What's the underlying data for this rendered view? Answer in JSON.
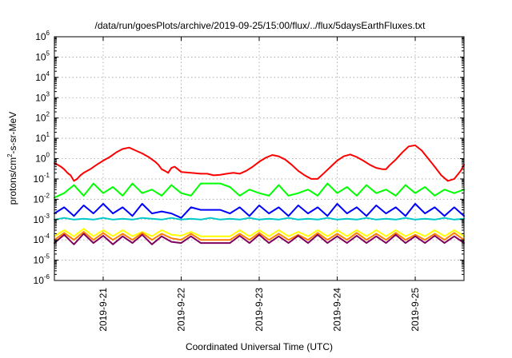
{
  "chart_data": {
    "type": "line",
    "title": "/data/run/goesPlots/archive/2019-09-25/15:00/flux/../flux/5daysEarthFluxes.txt",
    "xlabel": "Coordinated Universal Time (UTC)",
    "ylabel": {
      "base": "protons/cm",
      "sup": "2",
      "rest": "-s-sr-MeV"
    },
    "yscale": "log",
    "ylim": [
      1e-06,
      1000000.0
    ],
    "y_ticks": [
      {
        "base": "10",
        "exp": "6",
        "value": 1000000.0
      },
      {
        "base": "10",
        "exp": "5",
        "value": 100000.0
      },
      {
        "base": "10",
        "exp": "4",
        "value": 10000.0
      },
      {
        "base": "10",
        "exp": "3",
        "value": 1000.0
      },
      {
        "base": "10",
        "exp": "2",
        "value": 100.0
      },
      {
        "base": "10",
        "exp": "1",
        "value": 10.0
      },
      {
        "base": "10",
        "exp": "0",
        "value": 1.0
      },
      {
        "base": "10",
        "exp": "-1",
        "value": 0.1
      },
      {
        "base": "10",
        "exp": "-2",
        "value": 0.01
      },
      {
        "base": "10",
        "exp": "-3",
        "value": 0.001
      },
      {
        "base": "10",
        "exp": "-4",
        "value": 0.0001
      },
      {
        "base": "10",
        "exp": "-5",
        "value": 1e-05
      },
      {
        "base": "10",
        "exp": "-6",
        "value": 1e-06
      }
    ],
    "xlim": [
      "2019-09-20 09:00",
      "2019-09-25 15:00"
    ],
    "x_ticks": [
      {
        "label": "2019-9-21",
        "value": "2019-09-21 00:00"
      },
      {
        "label": "2019-9-22",
        "value": "2019-09-22 00:00"
      },
      {
        "label": "2019-9-23",
        "value": "2019-09-23 00:00"
      },
      {
        "label": "2019-9-24",
        "value": "2019-09-24 00:00"
      },
      {
        "label": "2019-9-25",
        "value": "2019-09-25 00:00"
      }
    ],
    "grid": true,
    "series": [
      {
        "color": "#ff0000",
        "x": [
          "2019-09-20 09:00",
          "2019-09-20 10:00",
          "2019-09-20 11:00",
          "2019-09-20 12:00",
          "2019-09-20 13:00",
          "2019-09-20 14:00",
          "2019-09-20 15:00",
          "2019-09-20 16:00",
          "2019-09-20 17:00",
          "2019-09-20 18:00",
          "2019-09-20 20:00",
          "2019-09-20 22:00",
          "2019-09-21 00:00",
          "2019-09-21 02:00",
          "2019-09-21 04:00",
          "2019-09-21 06:00",
          "2019-09-21 08:00",
          "2019-09-21 10:00",
          "2019-09-21 12:00",
          "2019-09-21 14:00",
          "2019-09-21 16:00",
          "2019-09-21 17:00",
          "2019-09-21 18:00",
          "2019-09-21 19:00",
          "2019-09-21 20:00",
          "2019-09-21 21:00",
          "2019-09-21 22:00",
          "2019-09-21 23:00",
          "2019-09-22 00:00",
          "2019-09-22 03:00",
          "2019-09-22 06:00",
          "2019-09-22 08:00",
          "2019-09-22 10:00",
          "2019-09-22 12:00",
          "2019-09-22 14:00",
          "2019-09-22 16:00",
          "2019-09-22 18:00",
          "2019-09-22 20:00",
          "2019-09-22 22:00",
          "2019-09-23 00:00",
          "2019-09-23 02:00",
          "2019-09-23 04:00",
          "2019-09-23 06:00",
          "2019-09-23 08:00",
          "2019-09-23 10:00",
          "2019-09-23 12:00",
          "2019-09-23 14:00",
          "2019-09-23 16:00",
          "2019-09-23 18:00",
          "2019-09-23 20:00",
          "2019-09-23 22:00",
          "2019-09-24 00:00",
          "2019-09-24 02:00",
          "2019-09-24 04:00",
          "2019-09-24 06:00",
          "2019-09-24 08:00",
          "2019-09-24 10:00",
          "2019-09-24 12:00",
          "2019-09-24 14:00",
          "2019-09-24 15:00",
          "2019-09-24 16:00",
          "2019-09-24 18:00",
          "2019-09-24 20:00",
          "2019-09-24 22:00",
          "2019-09-25 00:00",
          "2019-09-25 02:00",
          "2019-09-25 04:00",
          "2019-09-25 06:00",
          "2019-09-25 08:00",
          "2019-09-25 10:00",
          "2019-09-25 12:00",
          "2019-09-25 14:00",
          "2019-09-25 15:00"
        ],
        "y": [
          0.6,
          0.5,
          0.4,
          0.3,
          0.2,
          0.15,
          0.08,
          0.1,
          0.15,
          0.2,
          0.3,
          0.5,
          0.8,
          1.2,
          2,
          3,
          3.5,
          2.5,
          1.8,
          1.2,
          0.7,
          0.5,
          0.3,
          0.25,
          0.2,
          0.35,
          0.4,
          0.3,
          0.22,
          0.2,
          0.18,
          0.18,
          0.15,
          0.16,
          0.18,
          0.2,
          0.18,
          0.25,
          0.4,
          0.7,
          1.1,
          1.5,
          1.3,
          0.9,
          0.5,
          0.25,
          0.15,
          0.1,
          0.1,
          0.2,
          0.4,
          0.8,
          1.3,
          1.6,
          1.2,
          0.8,
          0.5,
          0.35,
          0.3,
          0.3,
          0.45,
          0.9,
          2,
          4,
          4.5,
          2.5,
          1,
          0.4,
          0.15,
          0.08,
          0.1,
          0.25,
          0.5
        ]
      },
      {
        "color": "#00ff00",
        "x": [
          "2019-09-20 09:00",
          "2019-09-20 12:00",
          "2019-09-20 15:00",
          "2019-09-20 18:00",
          "2019-09-20 21:00",
          "2019-09-21 00:00",
          "2019-09-21 03:00",
          "2019-09-21 06:00",
          "2019-09-21 09:00",
          "2019-09-21 12:00",
          "2019-09-21 15:00",
          "2019-09-21 18:00",
          "2019-09-21 21:00",
          "2019-09-22 00:00",
          "2019-09-22 03:00",
          "2019-09-22 06:00",
          "2019-09-22 09:00",
          "2019-09-22 12:00",
          "2019-09-22 15:00",
          "2019-09-22 18:00",
          "2019-09-22 21:00",
          "2019-09-23 00:00",
          "2019-09-23 03:00",
          "2019-09-23 06:00",
          "2019-09-23 09:00",
          "2019-09-23 12:00",
          "2019-09-23 15:00",
          "2019-09-23 18:00",
          "2019-09-23 21:00",
          "2019-09-24 00:00",
          "2019-09-24 03:00",
          "2019-09-24 06:00",
          "2019-09-24 09:00",
          "2019-09-24 12:00",
          "2019-09-24 15:00",
          "2019-09-24 18:00",
          "2019-09-24 21:00",
          "2019-09-25 00:00",
          "2019-09-25 03:00",
          "2019-09-25 06:00",
          "2019-09-25 09:00",
          "2019-09-25 12:00",
          "2019-09-25 15:00"
        ],
        "y": [
          0.012,
          0.02,
          0.05,
          0.015,
          0.06,
          0.02,
          0.04,
          0.015,
          0.06,
          0.02,
          0.03,
          0.015,
          0.05,
          0.02,
          0.015,
          0.06,
          0.06,
          0.06,
          0.04,
          0.015,
          0.03,
          0.02,
          0.015,
          0.05,
          0.015,
          0.02,
          0.03,
          0.015,
          0.06,
          0.02,
          0.04,
          0.015,
          0.05,
          0.02,
          0.03,
          0.015,
          0.05,
          0.02,
          0.04,
          0.015,
          0.03,
          0.02,
          0.03
        ]
      },
      {
        "color": "#0000ff",
        "x": [
          "2019-09-20 09:00",
          "2019-09-20 12:00",
          "2019-09-20 15:00",
          "2019-09-20 18:00",
          "2019-09-20 21:00",
          "2019-09-21 00:00",
          "2019-09-21 03:00",
          "2019-09-21 06:00",
          "2019-09-21 09:00",
          "2019-09-21 12:00",
          "2019-09-21 15:00",
          "2019-09-21 18:00",
          "2019-09-21 21:00",
          "2019-09-22 00:00",
          "2019-09-22 03:00",
          "2019-09-22 06:00",
          "2019-09-22 09:00",
          "2019-09-22 12:00",
          "2019-09-22 15:00",
          "2019-09-22 18:00",
          "2019-09-22 21:00",
          "2019-09-23 00:00",
          "2019-09-23 03:00",
          "2019-09-23 06:00",
          "2019-09-23 09:00",
          "2019-09-23 12:00",
          "2019-09-23 15:00",
          "2019-09-23 18:00",
          "2019-09-23 21:00",
          "2019-09-24 00:00",
          "2019-09-24 03:00",
          "2019-09-24 06:00",
          "2019-09-24 09:00",
          "2019-09-24 12:00",
          "2019-09-24 15:00",
          "2019-09-24 18:00",
          "2019-09-24 21:00",
          "2019-09-25 00:00",
          "2019-09-25 03:00",
          "2019-09-25 06:00",
          "2019-09-25 09:00",
          "2019-09-25 12:00",
          "2019-09-25 15:00"
        ],
        "y": [
          0.002,
          0.004,
          0.0015,
          0.005,
          0.002,
          0.006,
          0.002,
          0.004,
          0.0015,
          0.006,
          0.002,
          0.0025,
          0.002,
          0.0012,
          0.004,
          0.003,
          0.003,
          0.003,
          0.002,
          0.004,
          0.0015,
          0.005,
          0.002,
          0.004,
          0.0015,
          0.005,
          0.002,
          0.004,
          0.0015,
          0.006,
          0.002,
          0.004,
          0.0015,
          0.005,
          0.002,
          0.004,
          0.0015,
          0.006,
          0.002,
          0.004,
          0.0015,
          0.004,
          0.0015
        ]
      },
      {
        "color": "#00c8c8",
        "x": [
          "2019-09-20 09:00",
          "2019-09-20 12:00",
          "2019-09-20 15:00",
          "2019-09-20 18:00",
          "2019-09-20 21:00",
          "2019-09-21 00:00",
          "2019-09-21 03:00",
          "2019-09-21 06:00",
          "2019-09-21 09:00",
          "2019-09-21 12:00",
          "2019-09-21 15:00",
          "2019-09-21 18:00",
          "2019-09-21 21:00",
          "2019-09-22 00:00",
          "2019-09-22 03:00",
          "2019-09-22 06:00",
          "2019-09-22 09:00",
          "2019-09-22 12:00",
          "2019-09-22 15:00",
          "2019-09-22 18:00",
          "2019-09-22 21:00",
          "2019-09-23 00:00",
          "2019-09-23 03:00",
          "2019-09-23 06:00",
          "2019-09-23 09:00",
          "2019-09-23 12:00",
          "2019-09-23 15:00",
          "2019-09-23 18:00",
          "2019-09-23 21:00",
          "2019-09-24 00:00",
          "2019-09-24 03:00",
          "2019-09-24 06:00",
          "2019-09-24 09:00",
          "2019-09-24 12:00",
          "2019-09-24 15:00",
          "2019-09-24 18:00",
          "2019-09-24 21:00",
          "2019-09-25 00:00",
          "2019-09-25 03:00",
          "2019-09-25 06:00",
          "2019-09-25 09:00",
          "2019-09-25 12:00",
          "2019-09-25 15:00"
        ],
        "y": [
          0.001,
          0.0012,
          0.001,
          0.0011,
          0.001,
          0.0012,
          0.001,
          0.0011,
          0.001,
          0.0012,
          0.0011,
          0.001,
          0.0012,
          0.001,
          0.0011,
          0.001,
          0.0012,
          0.001,
          0.0011,
          0.001,
          0.0012,
          0.001,
          0.0011,
          0.001,
          0.0012,
          0.001,
          0.0011,
          0.001,
          0.0012,
          0.001,
          0.0011,
          0.001,
          0.0012,
          0.001,
          0.0011,
          0.001,
          0.0012,
          0.001,
          0.0011,
          0.001,
          0.0012,
          0.001,
          0.0011
        ]
      },
      {
        "color": "#ffff00",
        "x": [
          "2019-09-20 09:00",
          "2019-09-20 12:00",
          "2019-09-20 15:00",
          "2019-09-20 18:00",
          "2019-09-20 21:00",
          "2019-09-21 00:00",
          "2019-09-21 03:00",
          "2019-09-21 06:00",
          "2019-09-21 09:00",
          "2019-09-21 12:00",
          "2019-09-21 15:00",
          "2019-09-21 18:00",
          "2019-09-21 21:00",
          "2019-09-22 00:00",
          "2019-09-22 03:00",
          "2019-09-22 06:00",
          "2019-09-22 09:00",
          "2019-09-22 12:00",
          "2019-09-22 15:00",
          "2019-09-22 18:00",
          "2019-09-22 21:00",
          "2019-09-23 00:00",
          "2019-09-23 03:00",
          "2019-09-23 06:00",
          "2019-09-23 09:00",
          "2019-09-23 12:00",
          "2019-09-23 15:00",
          "2019-09-23 18:00",
          "2019-09-23 21:00",
          "2019-09-24 00:00",
          "2019-09-24 03:00",
          "2019-09-24 06:00",
          "2019-09-24 09:00",
          "2019-09-24 12:00",
          "2019-09-24 15:00",
          "2019-09-24 18:00",
          "2019-09-24 21:00",
          "2019-09-25 00:00",
          "2019-09-25 03:00",
          "2019-09-25 06:00",
          "2019-09-25 09:00",
          "2019-09-25 12:00",
          "2019-09-25 15:00"
        ],
        "y": [
          0.00015,
          0.0003,
          0.00015,
          0.00035,
          0.00015,
          0.0003,
          0.00015,
          0.0003,
          0.00015,
          0.00025,
          0.00015,
          0.0003,
          0.00018,
          0.00016,
          0.00025,
          0.00015,
          0.00015,
          0.00015,
          0.00015,
          0.0003,
          0.00015,
          0.0003,
          0.00015,
          0.0003,
          0.00015,
          0.00025,
          0.00015,
          0.0003,
          0.00015,
          0.0003,
          0.00015,
          0.0003,
          0.00015,
          0.0003,
          0.00015,
          0.0003,
          0.00015,
          0.00025,
          0.00015,
          0.0003,
          0.00015,
          0.0003,
          0.00015
        ]
      },
      {
        "color": "#ff7f00",
        "x": [
          "2019-09-20 09:00",
          "2019-09-20 12:00",
          "2019-09-20 15:00",
          "2019-09-20 18:00",
          "2019-09-20 21:00",
          "2019-09-21 00:00",
          "2019-09-21 03:00",
          "2019-09-21 06:00",
          "2019-09-21 09:00",
          "2019-09-21 12:00",
          "2019-09-21 15:00",
          "2019-09-21 18:00",
          "2019-09-21 21:00",
          "2019-09-22 00:00",
          "2019-09-22 03:00",
          "2019-09-22 06:00",
          "2019-09-22 09:00",
          "2019-09-22 12:00",
          "2019-09-22 15:00",
          "2019-09-22 18:00",
          "2019-09-22 21:00",
          "2019-09-23 00:00",
          "2019-09-23 03:00",
          "2019-09-23 06:00",
          "2019-09-23 09:00",
          "2019-09-23 12:00",
          "2019-09-23 15:00",
          "2019-09-23 18:00",
          "2019-09-23 21:00",
          "2019-09-24 00:00",
          "2019-09-24 03:00",
          "2019-09-24 06:00",
          "2019-09-24 09:00",
          "2019-09-24 12:00",
          "2019-09-24 15:00",
          "2019-09-24 18:00",
          "2019-09-24 21:00",
          "2019-09-25 00:00",
          "2019-09-25 03:00",
          "2019-09-25 06:00",
          "2019-09-25 09:00",
          "2019-09-25 12:00",
          "2019-09-25 15:00"
        ],
        "y": [
          0.0001,
          0.00022,
          0.0001,
          0.00025,
          0.0001,
          0.00022,
          0.0001,
          0.0002,
          0.0001,
          0.00022,
          0.0001,
          0.0002,
          0.00012,
          0.0001,
          0.0002,
          0.0001,
          0.0001,
          0.0001,
          0.0001,
          0.0002,
          0.0001,
          0.00022,
          0.0001,
          0.0002,
          0.0001,
          0.00018,
          0.0001,
          0.00022,
          0.0001,
          0.0002,
          0.0001,
          0.00022,
          0.0001,
          0.0002,
          0.0001,
          0.00022,
          0.0001,
          0.00018,
          0.0001,
          0.0002,
          0.0001,
          0.00022,
          0.0001
        ]
      },
      {
        "color": "#800060",
        "x": [
          "2019-09-20 09:00",
          "2019-09-20 12:00",
          "2019-09-20 15:00",
          "2019-09-20 18:00",
          "2019-09-20 21:00",
          "2019-09-21 00:00",
          "2019-09-21 03:00",
          "2019-09-21 06:00",
          "2019-09-21 09:00",
          "2019-09-21 12:00",
          "2019-09-21 15:00",
          "2019-09-21 18:00",
          "2019-09-21 21:00",
          "2019-09-22 00:00",
          "2019-09-22 03:00",
          "2019-09-22 06:00",
          "2019-09-22 09:00",
          "2019-09-22 12:00",
          "2019-09-22 15:00",
          "2019-09-22 18:00",
          "2019-09-22 21:00",
          "2019-09-23 00:00",
          "2019-09-23 03:00",
          "2019-09-23 06:00",
          "2019-09-23 09:00",
          "2019-09-23 12:00",
          "2019-09-23 15:00",
          "2019-09-23 18:00",
          "2019-09-23 21:00",
          "2019-09-24 00:00",
          "2019-09-24 03:00",
          "2019-09-24 06:00",
          "2019-09-24 09:00",
          "2019-09-24 12:00",
          "2019-09-24 15:00",
          "2019-09-24 18:00",
          "2019-09-24 21:00",
          "2019-09-25 00:00",
          "2019-09-25 03:00",
          "2019-09-25 06:00",
          "2019-09-25 09:00",
          "2019-09-25 12:00",
          "2019-09-25 15:00"
        ],
        "y": [
          7e-05,
          0.00018,
          6e-05,
          0.0002,
          7e-05,
          0.00016,
          6e-05,
          0.00015,
          7e-05,
          0.00018,
          6e-05,
          0.00015,
          8e-05,
          7e-05,
          0.00015,
          7e-05,
          7e-05,
          7e-05,
          7e-05,
          0.00016,
          7e-05,
          0.00018,
          7e-05,
          0.00015,
          7e-05,
          0.00016,
          7e-05,
          0.00018,
          7e-05,
          0.00015,
          7e-05,
          0.00016,
          7e-05,
          0.00015,
          7e-05,
          0.00018,
          7e-05,
          0.00015,
          7e-05,
          0.00016,
          7e-05,
          0.00015,
          7e-05
        ]
      }
    ]
  }
}
